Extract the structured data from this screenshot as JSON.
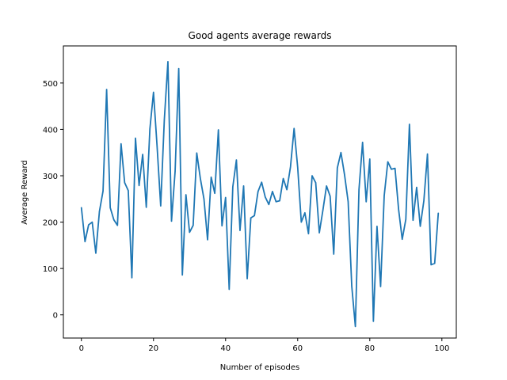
{
  "chart_data": {
    "type": "line",
    "title": "Good agents average rewards",
    "xlabel": "Number of episodes",
    "ylabel": "Average Reward",
    "xlim": [
      -5,
      104
    ],
    "ylim": [
      -50,
      580
    ],
    "xticks": [
      0,
      20,
      40,
      60,
      80,
      100
    ],
    "yticks": [
      0,
      100,
      200,
      300,
      400,
      500
    ],
    "grid": false,
    "series_color": "#1f77b4",
    "series": [
      {
        "values": [
          231,
          158,
          194,
          200,
          133,
          223,
          267,
          486,
          231,
          205,
          193,
          369,
          285,
          268,
          80,
          381,
          279,
          346,
          232,
          401,
          480,
          363,
          235,
          420,
          546,
          202,
          310,
          531,
          86,
          259,
          178,
          193,
          349,
          294,
          250,
          162,
          297,
          262,
          399,
          192,
          253,
          55,
          276,
          334,
          182,
          278,
          78,
          209,
          214,
          266,
          286,
          254,
          238,
          266,
          244,
          246,
          294,
          270,
          319,
          402,
          318,
          200,
          220,
          175,
          300,
          285,
          177,
          226,
          278,
          256,
          131,
          317,
          350,
          302,
          244,
          62,
          -25,
          270,
          372,
          244,
          336,
          -14,
          191,
          61,
          257,
          330,
          314,
          316,
          227,
          163,
          206,
          411,
          204,
          275,
          191,
          246,
          347,
          108,
          111,
          219
        ]
      }
    ]
  }
}
